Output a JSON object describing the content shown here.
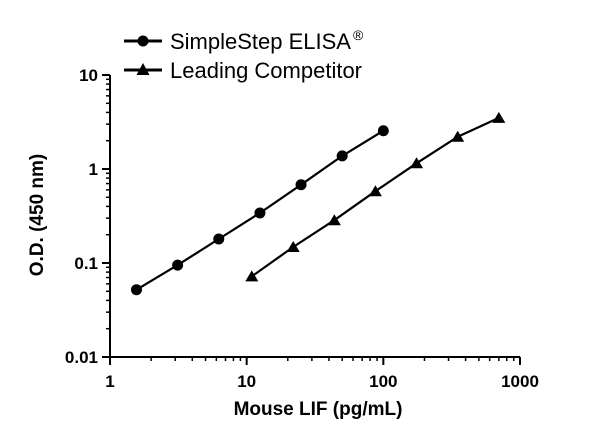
{
  "chart_data": {
    "type": "line",
    "xlabel": "Mouse LIF (pg/mL)",
    "ylabel": "O.D. (450 nm)",
    "x_scale": "log",
    "y_scale": "log",
    "xlim": [
      1,
      1000
    ],
    "ylim": [
      0.01,
      10
    ],
    "x_ticks": [
      "1",
      "10",
      "100",
      "1000"
    ],
    "y_ticks": [
      "0.01",
      "0.1",
      "1",
      "10"
    ],
    "grid": false,
    "legend_position": "top-left",
    "series": [
      {
        "name": "SimpleStep ELISA",
        "name_suffix": "®",
        "marker": "circle",
        "color": "#000000",
        "x": [
          1.5625,
          3.125,
          6.25,
          12.5,
          25,
          50,
          100
        ],
        "y": [
          0.052,
          0.095,
          0.18,
          0.34,
          0.68,
          1.38,
          2.55
        ]
      },
      {
        "name": "Leading Competitor",
        "marker": "triangle",
        "color": "#000000",
        "x": [
          10.9,
          21.9,
          43.8,
          87.5,
          175,
          350,
          700
        ],
        "y": [
          0.072,
          0.148,
          0.285,
          0.58,
          1.15,
          2.2,
          3.5
        ]
      }
    ]
  }
}
